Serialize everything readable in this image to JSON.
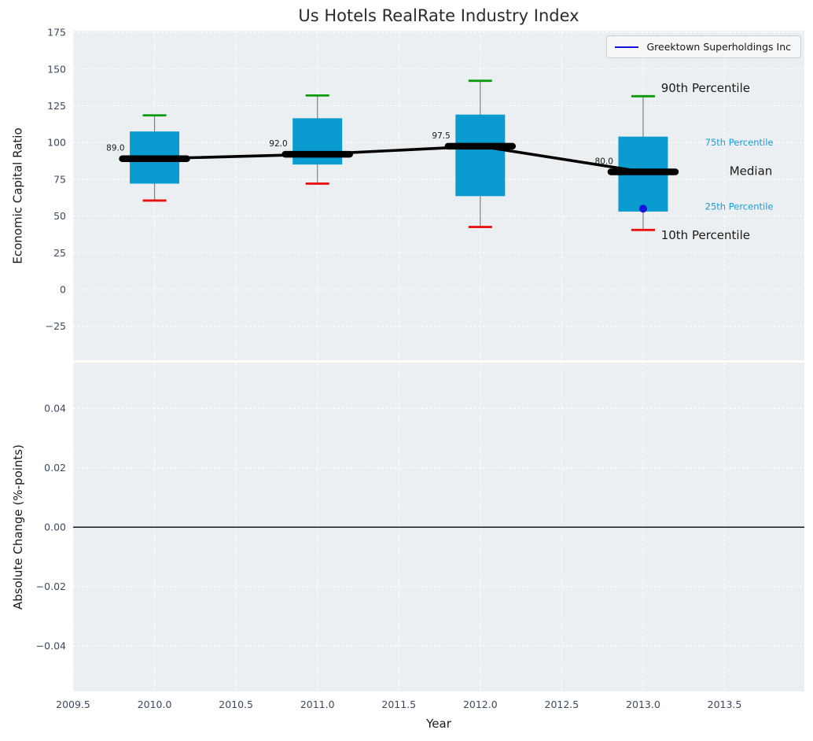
{
  "chart_data": {
    "type": "boxplot",
    "title": "Us Hotels RealRate Industry Index",
    "xlabel": "Year",
    "xlim": [
      2009.5,
      2013.99
    ],
    "xtick_values": [
      2009.5,
      2010.0,
      2010.5,
      2011.0,
      2011.5,
      2012.0,
      2012.5,
      2013.0,
      2013.5
    ],
    "xtick_labels": [
      "2009.5",
      "2010.0",
      "2010.5",
      "2011.0",
      "2011.5",
      "2012.0",
      "2012.5",
      "2013.0",
      "2013.5"
    ],
    "legend": {
      "label": "Greektown Superholdings Inc"
    },
    "subplots": [
      {
        "ylabel": "Economic Capital Ratio",
        "ylim": [
          -48.2,
          176.1
        ],
        "ytick_values": [
          175,
          150,
          125,
          100,
          75,
          50,
          25,
          0,
          -25
        ],
        "ytick_labels": [
          "175",
          "150",
          "125",
          "100",
          "75",
          "50",
          "25",
          "0",
          "−25"
        ],
        "boxes": {
          "x": [
            2010,
            2011,
            2012,
            2013
          ],
          "p10": [
            60.5,
            72,
            42.5,
            40.5
          ],
          "p25": [
            72,
            85,
            63.5,
            53
          ],
          "median": [
            89.0,
            92.0,
            97.5,
            80.0
          ],
          "p75": [
            107.5,
            116.5,
            119,
            104
          ],
          "p90": [
            118.5,
            132,
            142,
            131.5
          ],
          "median_labels": [
            "89.0",
            "92.0",
            "97.5",
            "80.0"
          ]
        },
        "company_point": {
          "x": 2013,
          "y": 55
        },
        "annotations": [
          {
            "text": "90th Percentile",
            "x": 2013.11,
            "y": 137.0,
            "style": "big"
          },
          {
            "text": "75th Percentile",
            "x": 2013.38,
            "y": 100.0,
            "style": "small"
          },
          {
            "text": "Median",
            "x": 2013.53,
            "y": 80.5,
            "style": "big"
          },
          {
            "text": "25th Percentile",
            "x": 2013.38,
            "y": 56.5,
            "style": "small"
          },
          {
            "text": "10th Percentile",
            "x": 2013.11,
            "y": 37.0,
            "style": "big"
          }
        ]
      },
      {
        "ylabel": "Absolute Change (%-points)",
        "ylim": [
          -0.0553,
          0.0554
        ],
        "ytick_values": [
          0.04,
          0.02,
          0.0,
          -0.02,
          -0.04
        ],
        "ytick_labels": [
          "0.04",
          "0.02",
          "0.00",
          "−0.02",
          "−0.04"
        ],
        "zero_line": 0.0
      }
    ]
  },
  "colors": {
    "figure_bg": "#ffffff",
    "axes_bg": "#eceff1",
    "grid": "#ffffff",
    "box_fill": "#0a9bd1",
    "whisker": "#808080",
    "cap_high": "#0a9b0a",
    "cap_low": "#e81010",
    "median_line": "#000000",
    "company": "#1414dc",
    "accent_text": "#1a9cd8",
    "text_dark": "#1a1a1a",
    "tick_text": "#3c4a5e"
  }
}
